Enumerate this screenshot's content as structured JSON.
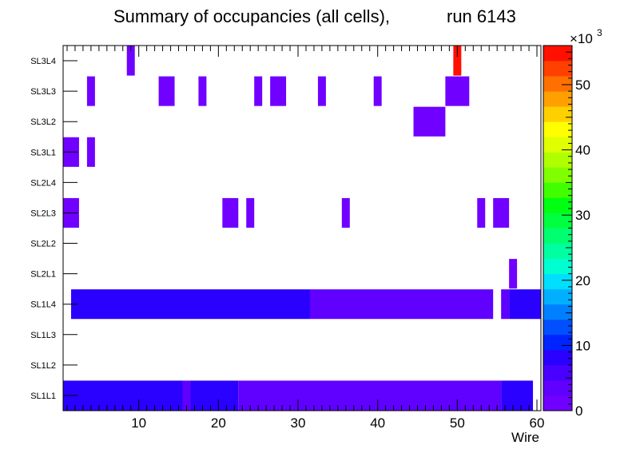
{
  "chart_data": {
    "type": "heatmap",
    "title_main": "Summary of occupancies (all cells),",
    "title_run": "run 6143",
    "xlabel": "Wire",
    "ylabel": "",
    "xlim": [
      0.5,
      60.5
    ],
    "xticks": [
      "10",
      "20",
      "30",
      "40",
      "50",
      "60"
    ],
    "xtick_values": [
      10,
      20,
      30,
      40,
      50,
      60
    ],
    "layers": [
      "SL1L1",
      "SL1L2",
      "SL1L3",
      "SL1L4",
      "SL2L1",
      "SL2L2",
      "SL2L3",
      "SL2L4",
      "SL3L1",
      "SL3L2",
      "SL3L3",
      "SL3L4"
    ],
    "zlim": [
      0,
      56000
    ],
    "zaxis_multiplier": "×10",
    "zaxis_exponent": "3",
    "zticks": [
      "0",
      "10",
      "20",
      "30",
      "40",
      "50"
    ],
    "ztick_values": [
      0,
      10,
      20,
      30,
      40,
      50
    ],
    "palette": [
      "#7000ff",
      "#6000ff",
      "#4a00ff",
      "#2a00ff",
      "#0024ff",
      "#0050ff",
      "#0080ff",
      "#00b0ff",
      "#00dfff",
      "#00ffd0",
      "#00ffa0",
      "#00ff70",
      "#00ff40",
      "#00ff10",
      "#40ff00",
      "#80ff00",
      "#b0ff00",
      "#e0ff00",
      "#ffff00",
      "#ffd000",
      "#ffa000",
      "#ff7000",
      "#ff4000",
      "#ff1000"
    ],
    "cells": [
      {
        "layer": "SL1L1",
        "wire_from": 1,
        "wire_to": 15,
        "value": 7000
      },
      {
        "layer": "SL1L1",
        "wire_from": 16,
        "wire_to": 16,
        "value": 3500
      },
      {
        "layer": "SL1L1",
        "wire_from": 17,
        "wire_to": 22,
        "value": 7000
      },
      {
        "layer": "SL1L1",
        "wire_from": 23,
        "wire_to": 55,
        "value": 3500
      },
      {
        "layer": "SL1L1",
        "wire_from": 56,
        "wire_to": 59,
        "value": 7000
      },
      {
        "layer": "SL1L4",
        "wire_from": 2,
        "wire_to": 31,
        "value": 7000
      },
      {
        "layer": "SL1L4",
        "wire_from": 32,
        "wire_to": 54,
        "value": 3500
      },
      {
        "layer": "SL1L4",
        "wire_from": 56,
        "wire_to": 56,
        "value": 3500
      },
      {
        "layer": "SL1L4",
        "wire_from": 57,
        "wire_to": 60,
        "value": 7000
      },
      {
        "layer": "SL2L1",
        "wire_from": 57,
        "wire_to": 57,
        "value": 1000
      },
      {
        "layer": "SL2L3",
        "wire_from": 1,
        "wire_to": 2,
        "value": 1000
      },
      {
        "layer": "SL2L3",
        "wire_from": 21,
        "wire_to": 22,
        "value": 1000
      },
      {
        "layer": "SL2L3",
        "wire_from": 24,
        "wire_to": 24,
        "value": 1000
      },
      {
        "layer": "SL2L3",
        "wire_from": 36,
        "wire_to": 36,
        "value": 1000
      },
      {
        "layer": "SL2L3",
        "wire_from": 53,
        "wire_to": 53,
        "value": 1000
      },
      {
        "layer": "SL2L3",
        "wire_from": 55,
        "wire_to": 56,
        "value": 1000
      },
      {
        "layer": "SL3L1",
        "wire_from": 1,
        "wire_to": 2,
        "value": 1000
      },
      {
        "layer": "SL3L1",
        "wire_from": 4,
        "wire_to": 4,
        "value": 1000
      },
      {
        "layer": "SL3L2",
        "wire_from": 45,
        "wire_to": 48,
        "value": 1000
      },
      {
        "layer": "SL3L3",
        "wire_from": 4,
        "wire_to": 4,
        "value": 1000
      },
      {
        "layer": "SL3L3",
        "wire_from": 13,
        "wire_to": 14,
        "value": 1000
      },
      {
        "layer": "SL3L3",
        "wire_from": 18,
        "wire_to": 18,
        "value": 1000
      },
      {
        "layer": "SL3L3",
        "wire_from": 25,
        "wire_to": 25,
        "value": 1000
      },
      {
        "layer": "SL3L3",
        "wire_from": 27,
        "wire_to": 28,
        "value": 1000
      },
      {
        "layer": "SL3L3",
        "wire_from": 33,
        "wire_to": 33,
        "value": 1000
      },
      {
        "layer": "SL3L3",
        "wire_from": 40,
        "wire_to": 40,
        "value": 1000
      },
      {
        "layer": "SL3L3",
        "wire_from": 49,
        "wire_to": 51,
        "value": 1000
      },
      {
        "layer": "SL3L4",
        "wire_from": 9,
        "wire_to": 9,
        "value": 1000
      },
      {
        "layer": "SL3L4",
        "wire_from": 50,
        "wire_to": 50,
        "value": 55000
      }
    ]
  }
}
